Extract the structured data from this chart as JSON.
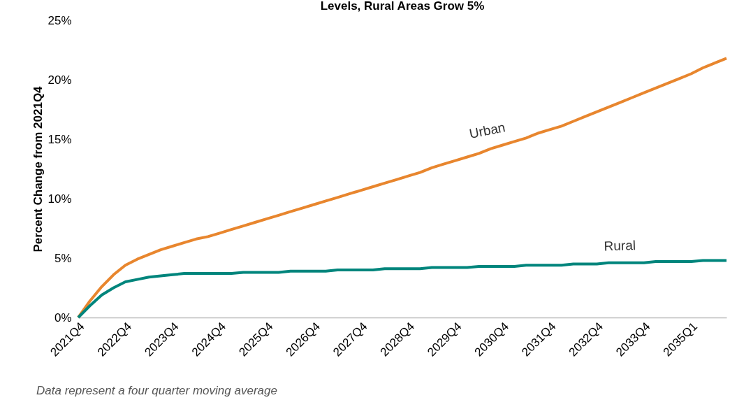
{
  "chart_data": {
    "type": "line",
    "title": "Levels, Rural Areas Grow 5%",
    "ylabel": "Percent Change from 2021Q4",
    "categories": [
      "2021Q4",
      null,
      null,
      null,
      "2022Q4",
      null,
      null,
      null,
      "2023Q4",
      null,
      null,
      null,
      "2024Q4",
      null,
      null,
      null,
      "2025Q4",
      null,
      null,
      null,
      "2026Q4",
      null,
      null,
      null,
      "2027Q4",
      null,
      null,
      null,
      "2028Q4",
      null,
      null,
      null,
      "2029Q4",
      null,
      null,
      null,
      "2030Q4",
      null,
      null,
      null,
      "2031Q4",
      null,
      null,
      null,
      "2032Q4",
      null,
      null,
      null,
      "2033Q4",
      null,
      null,
      null,
      "2035Q1",
      null,
      null,
      null
    ],
    "series": [
      {
        "name": "Urban",
        "color": "#e8862e",
        "values": [
          0,
          1.4,
          2.6,
          3.6,
          4.4,
          4.9,
          5.3,
          5.7,
          6.0,
          6.3,
          6.6,
          6.8,
          7.1,
          7.4,
          7.7,
          8.0,
          8.3,
          8.6,
          8.9,
          9.2,
          9.5,
          9.8,
          10.1,
          10.4,
          10.7,
          11.0,
          11.3,
          11.6,
          11.9,
          12.2,
          12.6,
          12.9,
          13.2,
          13.5,
          13.8,
          14.2,
          14.5,
          14.8,
          15.1,
          15.5,
          15.8,
          16.1,
          16.5,
          16.9,
          17.3,
          17.7,
          18.1,
          18.5,
          18.9,
          19.3,
          19.7,
          20.1,
          20.5,
          21.0,
          21.4,
          21.8
        ]
      },
      {
        "name": "Rural",
        "color": "#00857c",
        "values": [
          0,
          1.0,
          1.9,
          2.5,
          3.0,
          3.2,
          3.4,
          3.5,
          3.6,
          3.7,
          3.7,
          3.7,
          3.7,
          3.7,
          3.8,
          3.8,
          3.8,
          3.8,
          3.9,
          3.9,
          3.9,
          3.9,
          4.0,
          4.0,
          4.0,
          4.0,
          4.1,
          4.1,
          4.1,
          4.1,
          4.2,
          4.2,
          4.2,
          4.2,
          4.3,
          4.3,
          4.3,
          4.3,
          4.4,
          4.4,
          4.4,
          4.4,
          4.5,
          4.5,
          4.5,
          4.6,
          4.6,
          4.6,
          4.6,
          4.7,
          4.7,
          4.7,
          4.7,
          4.8,
          4.8,
          4.8
        ]
      }
    ],
    "ylim": [
      0,
      25
    ],
    "yticks": [
      {
        "value": 0,
        "label": "0%"
      },
      {
        "value": 5,
        "label": "5%"
      },
      {
        "value": 10,
        "label": "10%"
      },
      {
        "value": 15,
        "label": "15%"
      },
      {
        "value": 20,
        "label": "20%"
      },
      {
        "value": 25,
        "label": "25%"
      }
    ],
    "grid": false,
    "marker": "none",
    "line_style": "solid",
    "annotations": [
      "Data represent a four quarter moving average"
    ]
  }
}
